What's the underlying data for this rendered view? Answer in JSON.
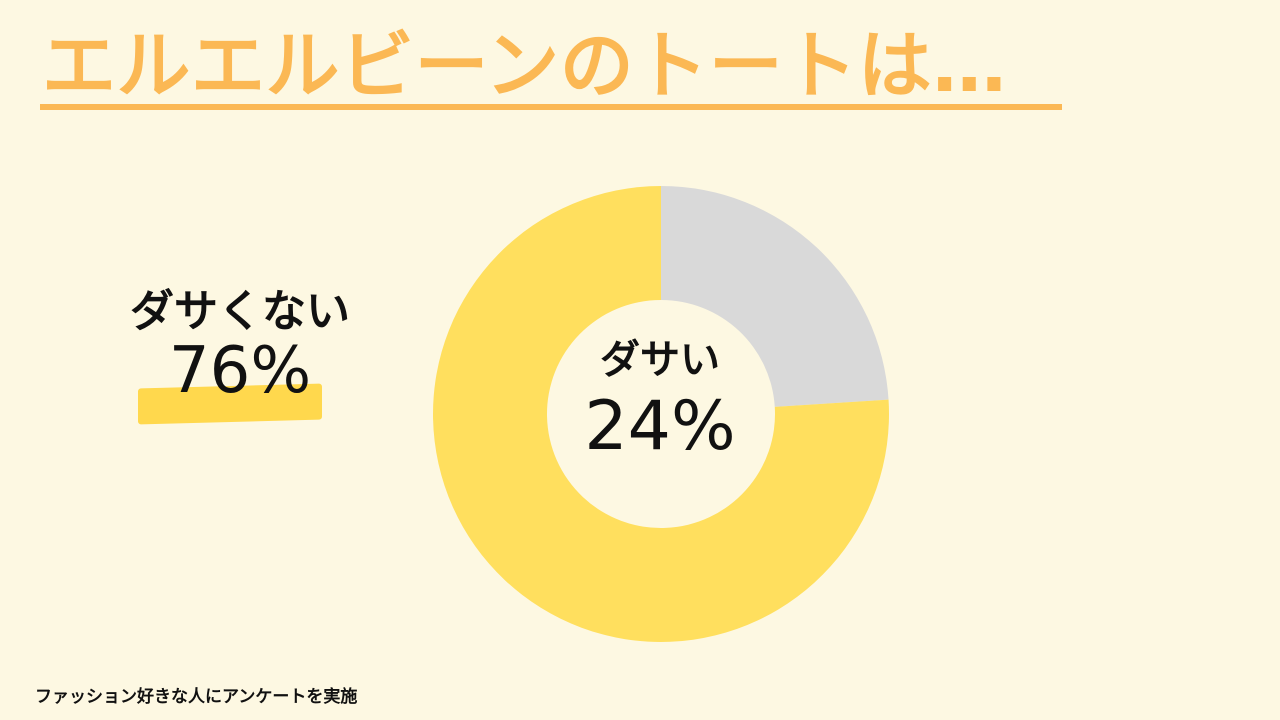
{
  "title": "エルエルビーンのトートは…",
  "footnote": "ファッション好きな人にアンケートを実施",
  "colors": {
    "background": "#fdf8e2",
    "title": "#fbb854",
    "highlight": "#ffd84d"
  },
  "chart_data": {
    "type": "pie",
    "variant": "donut",
    "series": [
      {
        "name": "ダサくない",
        "value": 76,
        "value_label": "76%",
        "color": "#ffdf5e"
      },
      {
        "name": "ダサい",
        "value": 24,
        "value_label": "24%",
        "color": "#d9d9d9"
      }
    ]
  }
}
